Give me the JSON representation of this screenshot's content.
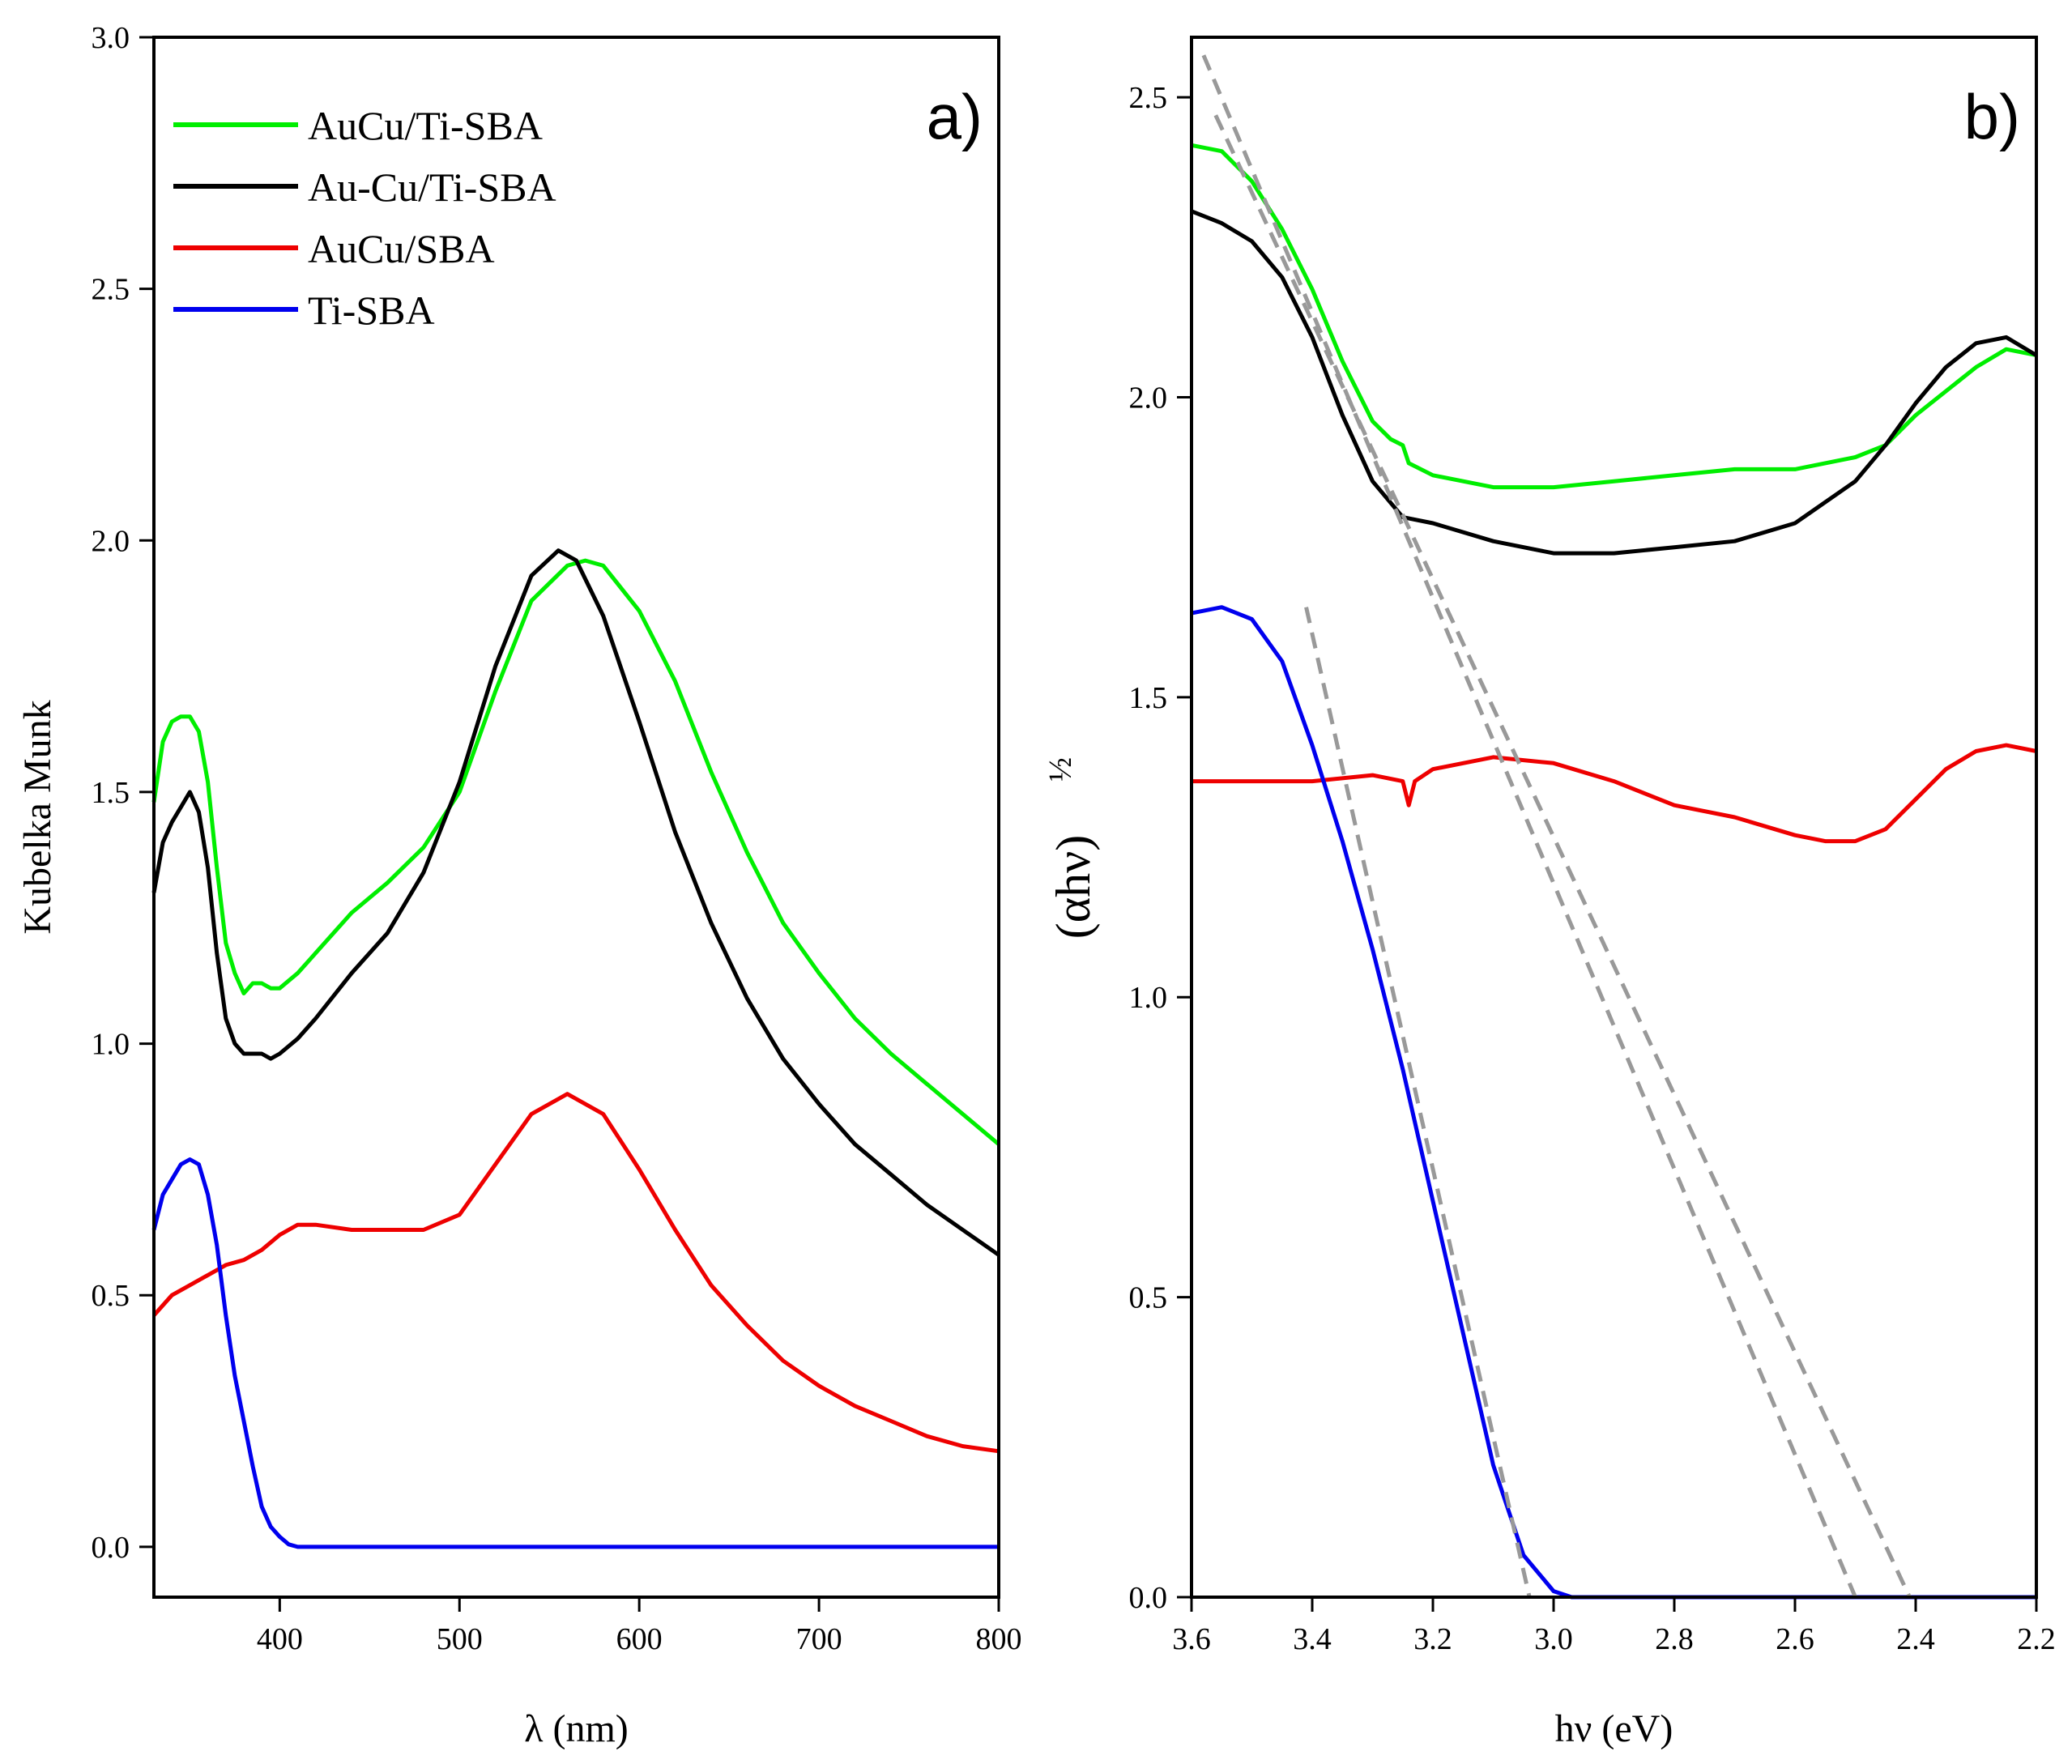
{
  "chart_data": [
    {
      "id": "a",
      "type": "line",
      "panel_label": "a)",
      "xlabel": "λ (nm)",
      "ylabel": "Kubelka Munk",
      "xlim": [
        330,
        800
      ],
      "ylim": [
        -0.1,
        3.0
      ],
      "xticks": [
        400,
        500,
        600,
        700,
        800
      ],
      "xtick_labels": [
        "400",
        "500",
        "600",
        "700",
        "800"
      ],
      "yticks": [
        0.0,
        0.5,
        1.0,
        1.5,
        2.0,
        2.5,
        3.0
      ],
      "ytick_labels": [
        "0.0",
        "0.5",
        "1.0",
        "1.5",
        "2.0",
        "2.5",
        "3.0"
      ],
      "legend_position": "top-left",
      "series": [
        {
          "name": "AuCu/Ti-SBA",
          "color": "#00ee00",
          "x": [
            330,
            335,
            340,
            345,
            350,
            355,
            360,
            365,
            370,
            375,
            380,
            385,
            390,
            395,
            400,
            410,
            420,
            440,
            460,
            480,
            500,
            520,
            540,
            560,
            570,
            580,
            600,
            620,
            640,
            660,
            680,
            700,
            720,
            740,
            760,
            780,
            800
          ],
          "y": [
            1.48,
            1.6,
            1.64,
            1.65,
            1.65,
            1.62,
            1.52,
            1.35,
            1.2,
            1.14,
            1.1,
            1.12,
            1.12,
            1.11,
            1.11,
            1.14,
            1.18,
            1.26,
            1.32,
            1.39,
            1.5,
            1.7,
            1.88,
            1.95,
            1.96,
            1.95,
            1.86,
            1.72,
            1.54,
            1.38,
            1.24,
            1.14,
            1.05,
            0.98,
            0.92,
            0.86,
            0.8
          ]
        },
        {
          "name": "Au-Cu/Ti-SBA",
          "color": "#000000",
          "x": [
            330,
            335,
            340,
            345,
            350,
            355,
            360,
            365,
            370,
            375,
            380,
            385,
            390,
            395,
            400,
            410,
            420,
            440,
            460,
            480,
            500,
            520,
            540,
            555,
            565,
            580,
            600,
            620,
            640,
            660,
            680,
            700,
            720,
            740,
            760,
            780,
            800
          ],
          "y": [
            1.3,
            1.4,
            1.44,
            1.47,
            1.5,
            1.46,
            1.35,
            1.18,
            1.05,
            1.0,
            0.98,
            0.98,
            0.98,
            0.97,
            0.98,
            1.01,
            1.05,
            1.14,
            1.22,
            1.34,
            1.52,
            1.75,
            1.93,
            1.98,
            1.96,
            1.85,
            1.64,
            1.42,
            1.24,
            1.09,
            0.97,
            0.88,
            0.8,
            0.74,
            0.68,
            0.63,
            0.58
          ]
        },
        {
          "name": "AuCu/SBA",
          "color": "#ee0000",
          "x": [
            330,
            340,
            350,
            360,
            370,
            380,
            390,
            400,
            410,
            420,
            440,
            460,
            480,
            500,
            520,
            540,
            560,
            580,
            600,
            620,
            640,
            660,
            680,
            700,
            720,
            740,
            760,
            780,
            800
          ],
          "y": [
            0.46,
            0.5,
            0.52,
            0.54,
            0.56,
            0.57,
            0.59,
            0.62,
            0.64,
            0.64,
            0.63,
            0.63,
            0.63,
            0.66,
            0.76,
            0.86,
            0.9,
            0.86,
            0.75,
            0.63,
            0.52,
            0.44,
            0.37,
            0.32,
            0.28,
            0.25,
            0.22,
            0.2,
            0.19
          ]
        },
        {
          "name": "Ti-SBA",
          "color": "#0000ee",
          "x": [
            330,
            335,
            340,
            345,
            350,
            355,
            360,
            365,
            370,
            375,
            380,
            385,
            390,
            395,
            400,
            405,
            410,
            420,
            440,
            500,
            600,
            700,
            800
          ],
          "y": [
            0.63,
            0.7,
            0.73,
            0.76,
            0.77,
            0.76,
            0.7,
            0.6,
            0.46,
            0.34,
            0.25,
            0.16,
            0.08,
            0.04,
            0.02,
            0.005,
            0.0,
            0.0,
            0.0,
            0.0,
            0.0,
            0.0,
            0.0
          ]
        }
      ]
    },
    {
      "id": "b",
      "type": "line",
      "panel_label": "b)",
      "xlabel": "hν (eV)",
      "ylabel": "(αhν)",
      "ylabel_exponent": "½",
      "xlim": [
        3.6,
        2.2
      ],
      "ylim": [
        0.0,
        2.6
      ],
      "xticks": [
        3.6,
        3.4,
        3.2,
        3.0,
        2.8,
        2.6,
        2.4,
        2.2
      ],
      "xtick_labels": [
        "3.6",
        "3.4",
        "3.2",
        "3.0",
        "2.8",
        "2.6",
        "2.4",
        "2.2"
      ],
      "yticks": [
        0.0,
        0.5,
        1.0,
        1.5,
        2.0,
        2.5
      ],
      "ytick_labels": [
        "0.0",
        "0.5",
        "1.0",
        "1.5",
        "2.0",
        "2.5"
      ],
      "series": [
        {
          "name": "AuCu/Ti-SBA",
          "color": "#00ee00",
          "x": [
            3.6,
            3.55,
            3.5,
            3.45,
            3.4,
            3.35,
            3.3,
            3.27,
            3.25,
            3.24,
            3.2,
            3.1,
            3.0,
            2.9,
            2.8,
            2.7,
            2.6,
            2.5,
            2.45,
            2.4,
            2.3,
            2.25,
            2.2
          ],
          "y": [
            2.42,
            2.41,
            2.36,
            2.28,
            2.18,
            2.06,
            1.96,
            1.93,
            1.92,
            1.89,
            1.87,
            1.85,
            1.85,
            1.86,
            1.87,
            1.88,
            1.88,
            1.9,
            1.92,
            1.97,
            2.05,
            2.08,
            2.07
          ]
        },
        {
          "name": "Au-Cu/Ti-SBA",
          "color": "#000000",
          "x": [
            3.6,
            3.55,
            3.5,
            3.45,
            3.4,
            3.35,
            3.3,
            3.25,
            3.2,
            3.1,
            3.0,
            2.9,
            2.8,
            2.7,
            2.6,
            2.5,
            2.45,
            2.4,
            2.35,
            2.3,
            2.25,
            2.2
          ],
          "y": [
            2.31,
            2.29,
            2.26,
            2.2,
            2.1,
            1.97,
            1.86,
            1.8,
            1.79,
            1.76,
            1.74,
            1.74,
            1.75,
            1.76,
            1.79,
            1.86,
            1.92,
            1.99,
            2.05,
            2.09,
            2.1,
            2.07
          ]
        },
        {
          "name": "AuCu/SBA",
          "color": "#ee0000",
          "x": [
            3.6,
            3.5,
            3.4,
            3.3,
            3.25,
            3.24,
            3.23,
            3.2,
            3.1,
            3.0,
            2.9,
            2.8,
            2.7,
            2.6,
            2.55,
            2.5,
            2.45,
            2.4,
            2.35,
            2.3,
            2.25,
            2.2
          ],
          "y": [
            1.36,
            1.36,
            1.36,
            1.37,
            1.36,
            1.32,
            1.36,
            1.38,
            1.4,
            1.39,
            1.36,
            1.32,
            1.3,
            1.27,
            1.26,
            1.26,
            1.28,
            1.33,
            1.38,
            1.41,
            1.42,
            1.41
          ]
        },
        {
          "name": "Ti-SBA",
          "color": "#0000ee",
          "x": [
            3.6,
            3.55,
            3.5,
            3.45,
            3.4,
            3.35,
            3.3,
            3.25,
            3.2,
            3.15,
            3.1,
            3.05,
            3.0,
            2.97,
            2.9,
            2.8,
            2.6,
            2.4,
            2.2
          ],
          "y": [
            1.64,
            1.65,
            1.63,
            1.56,
            1.42,
            1.26,
            1.08,
            0.88,
            0.66,
            0.44,
            0.22,
            0.07,
            0.01,
            0.0,
            0.0,
            0.0,
            0.0,
            0.0,
            0.0
          ]
        }
      ],
      "tangent_lines": [
        {
          "color": "#999999",
          "x": [
            3.58,
            2.5
          ],
          "y": [
            2.57,
            0.0
          ]
        },
        {
          "color": "#999999",
          "x": [
            3.56,
            2.41
          ],
          "y": [
            2.47,
            0.0
          ]
        },
        {
          "color": "#999999",
          "x": [
            3.41,
            3.04
          ],
          "y": [
            1.65,
            0.0
          ]
        }
      ]
    }
  ]
}
